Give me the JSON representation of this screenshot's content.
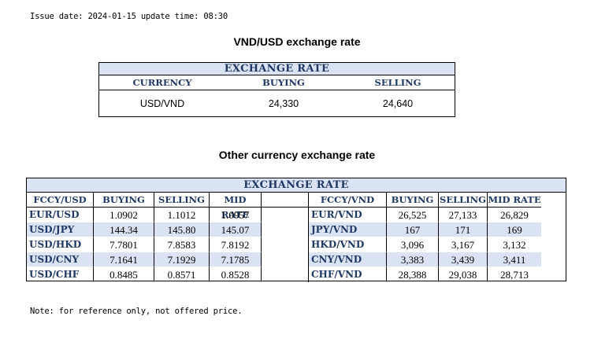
{
  "issue": {
    "issue_label": "Issue date:",
    "issue_date": "2024-01-15",
    "update_label": "update time:",
    "update_time": "08:30"
  },
  "usd_section": {
    "title": "VND/USD exchange rate",
    "band": "EXCHANGE RATE",
    "headers": [
      "CURRENCY",
      "BUYING",
      "SELLING"
    ],
    "row": {
      "currency": "USD/VND",
      "buying": "24,330",
      "selling": "24,640"
    }
  },
  "other_section": {
    "title": "Other currency exchange rate",
    "band": "EXCHANGE  RATE",
    "left_headers": [
      "FCCY/USD",
      "BUYING",
      "SELLING",
      "MID RATE"
    ],
    "right_headers": [
      "FCCY/VND",
      "BUYING",
      "SELLING",
      "MID RATE"
    ],
    "left_rows": [
      {
        "pair": "EUR/USD",
        "buying": "1.0902",
        "selling": "1.1012",
        "mid": "1.0957"
      },
      {
        "pair": "USD/JPY",
        "buying": "144.34",
        "selling": "145.80",
        "mid": "145.07"
      },
      {
        "pair": "USD/HKD",
        "buying": "7.7801",
        "selling": "7.8583",
        "mid": "7.8192"
      },
      {
        "pair": "USD/CNY",
        "buying": "7.1641",
        "selling": "7.1929",
        "mid": "7.1785"
      },
      {
        "pair": "USD/CHF",
        "buying": "0.8485",
        "selling": "0.8571",
        "mid": "0.8528"
      }
    ],
    "right_rows": [
      {
        "pair": "EUR/VND",
        "buying": "26,525",
        "selling": "27,133",
        "mid": "26,829"
      },
      {
        "pair": "JPY/VND",
        "buying": "167",
        "selling": "171",
        "mid": "169"
      },
      {
        "pair": "HKD/VND",
        "buying": "3,096",
        "selling": "3,167",
        "mid": "3,132"
      },
      {
        "pair": "CNY/VND",
        "buying": "3,383",
        "selling": "3,439",
        "mid": "3,411"
      },
      {
        "pair": "CHF/VND",
        "buying": "28,388",
        "selling": "29,038",
        "mid": "28,713"
      }
    ]
  },
  "note": "Note: for reference only, not offered price.",
  "colors": {
    "band": "#dae3f3",
    "header_text": "#1f3864"
  }
}
